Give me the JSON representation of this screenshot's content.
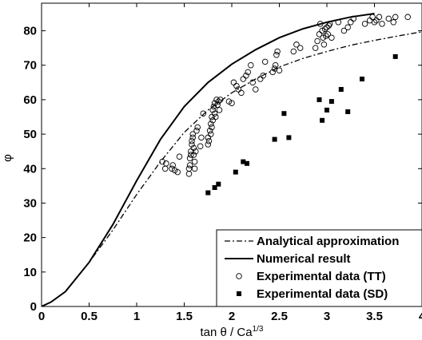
{
  "chart_data": {
    "type": "scatter",
    "xlabel": "tan θ / Ca",
    "xlabel_exponent": "1/3",
    "ylabel": "φ",
    "xlim": [
      0,
      4
    ],
    "ylim": [
      0,
      88
    ],
    "xticks": [
      "0",
      "0.5",
      "1",
      "1.5",
      "2",
      "2.5",
      "3",
      "3.5",
      "4"
    ],
    "yticks": [
      "0",
      "10",
      "20",
      "30",
      "40",
      "50",
      "60",
      "70",
      "80"
    ],
    "grid": false,
    "legend_position": "bottom-right",
    "series": [
      {
        "name": "Analytical approximation",
        "kind": "line",
        "style": "dash-dot",
        "x": [
          0,
          0.1,
          0.25,
          0.5,
          0.75,
          1.0,
          1.25,
          1.5,
          1.75,
          2.0,
          2.25,
          2.5,
          2.75,
          3.0,
          3.25,
          3.5,
          3.75,
          4.0
        ],
        "y": [
          0,
          1.3,
          4.3,
          12.8,
          22.2,
          32.5,
          42.0,
          50.5,
          57.0,
          62.0,
          66.0,
          69.5,
          72.0,
          74.0,
          75.8,
          77.2,
          78.5,
          79.7
        ]
      },
      {
        "name": "Numerical result",
        "kind": "line",
        "style": "solid",
        "x": [
          0,
          0.1,
          0.25,
          0.5,
          0.75,
          1.0,
          1.25,
          1.5,
          1.75,
          2.0,
          2.25,
          2.5,
          2.75,
          3.0,
          3.25,
          3.5
        ],
        "y": [
          0,
          1.3,
          4.3,
          12.8,
          23.8,
          36.5,
          48.5,
          58.0,
          65.0,
          70.3,
          74.5,
          78.0,
          80.6,
          82.5,
          84.0,
          85.0
        ]
      },
      {
        "name": "Experimental data (TT)",
        "kind": "points",
        "marker": "open-circle",
        "x": [
          1.27,
          1.3,
          1.31,
          1.37,
          1.38,
          1.4,
          1.43,
          1.45,
          1.55,
          1.55,
          1.56,
          1.56,
          1.57,
          1.57,
          1.58,
          1.58,
          1.59,
          1.59,
          1.6,
          1.6,
          1.61,
          1.61,
          1.62,
          1.63,
          1.64,
          1.67,
          1.68,
          1.7,
          1.75,
          1.75,
          1.76,
          1.77,
          1.78,
          1.78,
          1.79,
          1.79,
          1.8,
          1.8,
          1.81,
          1.82,
          1.82,
          1.83,
          1.84,
          1.85,
          1.86,
          1.87,
          1.88,
          1.97,
          2.0,
          2.02,
          2.05,
          2.07,
          2.1,
          2.12,
          2.15,
          2.17,
          2.2,
          2.22,
          2.25,
          2.3,
          2.33,
          2.35,
          2.43,
          2.45,
          2.46,
          2.47,
          2.48,
          2.5,
          2.65,
          2.68,
          2.72,
          2.88,
          2.9,
          2.92,
          2.93,
          2.95,
          2.96,
          2.97,
          2.98,
          2.99,
          3.0,
          3.01,
          3.02,
          3.03,
          3.05,
          3.12,
          3.18,
          3.22,
          3.25,
          3.28,
          3.4,
          3.45,
          3.48,
          3.5,
          3.52,
          3.55,
          3.58,
          3.65,
          3.7,
          3.72,
          3.85
        ],
        "y": [
          42,
          40,
          41.5,
          40,
          41,
          39.5,
          39,
          43.5,
          38.5,
          40,
          41,
          43,
          44,
          45,
          47,
          48,
          49,
          50,
          46,
          44,
          42,
          40,
          45,
          51,
          52,
          46.5,
          49,
          56,
          47,
          49,
          48,
          51,
          53,
          50,
          52,
          55,
          57,
          54,
          58,
          56,
          59,
          55,
          60,
          58.5,
          59.5,
          57,
          60,
          59.5,
          59,
          65,
          64,
          63,
          62,
          66,
          67,
          68,
          70,
          65,
          63,
          66,
          67,
          71,
          68,
          69,
          70,
          73,
          74,
          68.5,
          74,
          76,
          75,
          75,
          77,
          79,
          82,
          80,
          78,
          76,
          80.5,
          78.5,
          81,
          79,
          81.5,
          82,
          78,
          82.5,
          80,
          81,
          82.5,
          83.5,
          82,
          83,
          84,
          82.5,
          83,
          84,
          82,
          83.5,
          82.5,
          84,
          84
        ]
      },
      {
        "name": "Experimental data (SD)",
        "kind": "points",
        "marker": "filled-square",
        "x": [
          1.75,
          1.82,
          1.86,
          2.04,
          2.12,
          2.16,
          2.45,
          2.55,
          2.6,
          2.92,
          2.95,
          3.0,
          3.05,
          3.15,
          3.22,
          3.37,
          3.72
        ],
        "y": [
          33,
          34.5,
          35.5,
          39,
          42,
          41.5,
          48.5,
          56,
          49,
          60,
          54,
          57,
          59.5,
          63,
          56.5,
          66,
          72.5
        ]
      }
    ]
  }
}
